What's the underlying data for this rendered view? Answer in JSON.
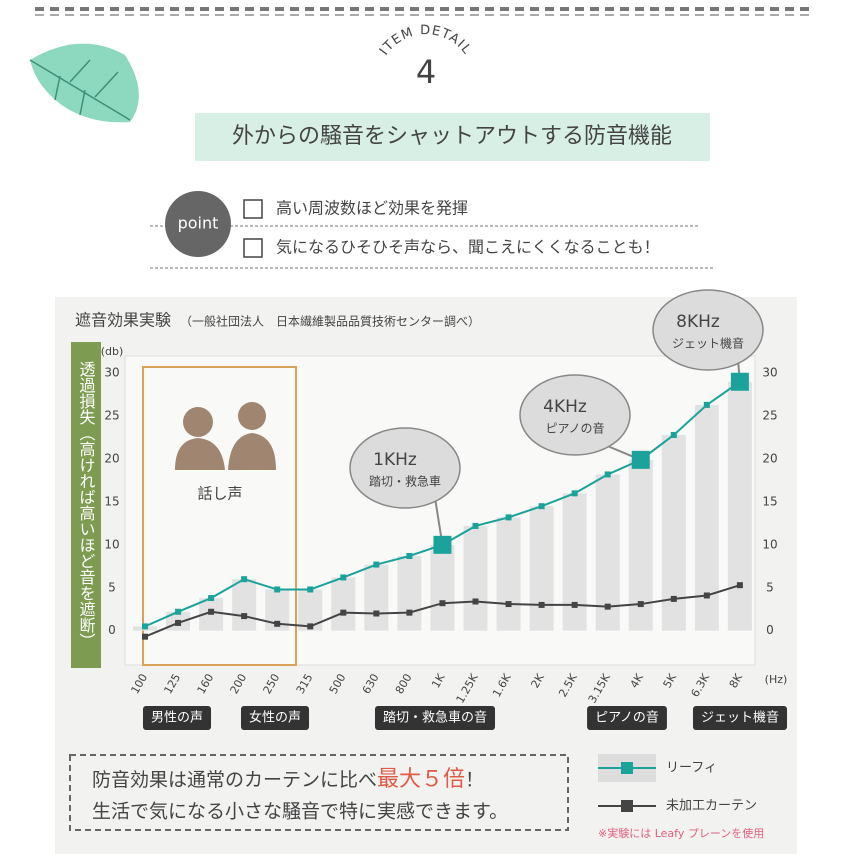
{
  "header": {
    "kicker": "ITEM DETAIL",
    "number": "4",
    "title": "外からの騒音をシャットアウトする防音機能"
  },
  "point": {
    "badge": "point",
    "items": [
      "高い周波数ほど効果を発揮",
      "気になるひそひそ声なら、聞こえにくくなることも！"
    ]
  },
  "chart_data": {
    "type": "line",
    "title": "遮音効果実験",
    "subtitle": "（一般社団法人　日本繊維製品品質技術センター調べ）",
    "y_label": "透過損失（高ければ高いほど音を遮断）",
    "y_unit": "(db)",
    "x_unit": "(Hz)",
    "categories": [
      "100",
      "125",
      "160",
      "200",
      "250",
      "315",
      "500",
      "630",
      "800",
      "1K",
      "1.25K",
      "1.6K",
      "2K",
      "2.5K",
      "3.15K",
      "4K",
      "5K",
      "6.3K",
      "8K"
    ],
    "series": [
      {
        "name": "リーフィ",
        "color": "#1ba39b",
        "values": [
          0.5,
          2.2,
          3.8,
          6,
          4.8,
          4.8,
          6.2,
          7.7,
          8.7,
          10,
          12.2,
          13.2,
          14.5,
          16,
          18.2,
          19.9,
          22.8,
          26.3,
          29
        ]
      },
      {
        "name": "未加工カーテン",
        "color": "#444444",
        "values": [
          -0.7,
          0.9,
          2.2,
          1.7,
          0.8,
          0.5,
          2.1,
          2,
          2.1,
          3.2,
          3.4,
          3.1,
          3,
          3,
          2.8,
          3.1,
          3.7,
          4.1,
          5.3
        ]
      }
    ],
    "ylim": [
      -4,
      32
    ],
    "yticks": [
      0,
      5,
      10,
      15,
      20,
      25,
      30
    ],
    "bar_color": "#e2e2e2",
    "speech_label": "話し声",
    "callouts": [
      {
        "freq": "1KHz",
        "label": "踏切・救急車"
      },
      {
        "freq": "4KHz",
        "label": "ピアノの音"
      },
      {
        "freq": "8KHz",
        "label": "ジェット機音"
      }
    ],
    "bands": [
      "男性の声",
      "女性の声",
      "踏切・救急車の音",
      "ピアノの音",
      "ジェット機音"
    ],
    "note": "※実験には Leafy プレーンを使用"
  },
  "summary": {
    "line1": "防音効果は通常のカーテンに比べ",
    "highlight": "最大５倍",
    "line1_end": "！",
    "line2": "生活で気になる小さな騒音で特に実感できます。"
  }
}
